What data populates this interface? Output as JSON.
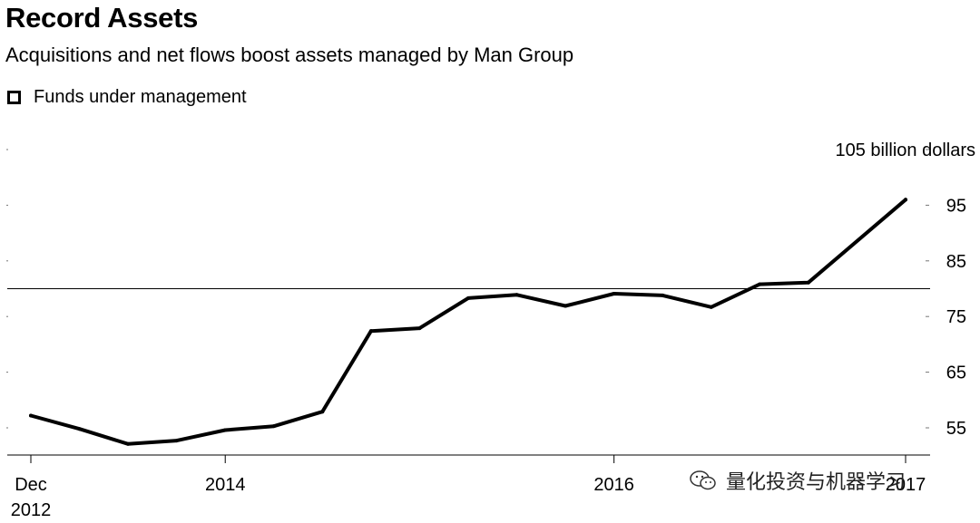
{
  "chart_data": {
    "type": "line",
    "title": "Record Assets",
    "subtitle": "Acquisitions and net flows boost assets managed by Man Group",
    "xlabel": "",
    "ylabel": "",
    "unit_label": "105 billion dollars",
    "ylim": [
      51,
      105
    ],
    "yticks": [
      55,
      65,
      75,
      85,
      95
    ],
    "y_grid_guides": [
      105,
      95,
      85,
      75,
      65,
      55
    ],
    "xlim": [
      2012.92,
      2017.42
    ],
    "xtick_values": [
      2012.92,
      2013.92,
      2015.92,
      2017.42
    ],
    "xticks": [
      "Dec\n2012",
      "2014",
      "2016",
      "2017"
    ],
    "reference_line": 80,
    "grid": false,
    "legend_position": "top-left",
    "series": [
      {
        "name": "Funds under management",
        "color": "#000000",
        "x": [
          2012.92,
          2013.17,
          2013.42,
          2013.67,
          2013.92,
          2014.17,
          2014.42,
          2014.67,
          2014.92,
          2015.17,
          2015.42,
          2015.67,
          2015.92,
          2016.17,
          2016.42,
          2016.67,
          2016.92,
          2017.42
        ],
        "values": [
          57.2,
          54.8,
          52.1,
          52.7,
          54.6,
          55.3,
          57.9,
          72.4,
          72.9,
          78.3,
          78.9,
          76.9,
          79.1,
          78.8,
          76.7,
          80.8,
          81.1,
          96.0
        ]
      }
    ]
  },
  "watermark": {
    "text": "量化投资与机器学习",
    "icon": "wechat-icon"
  }
}
